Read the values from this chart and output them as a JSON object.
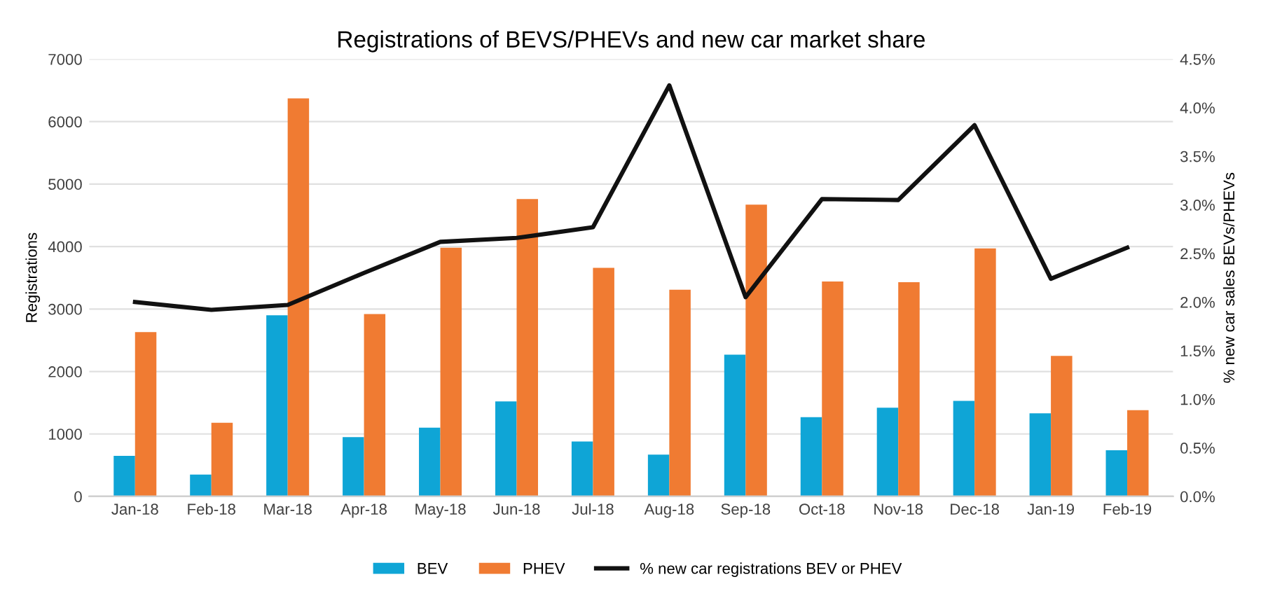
{
  "chart_data": {
    "type": "bar",
    "title": "Registrations of BEVS/PHEVs and new car market share",
    "ylabel": "Registrations",
    "y2label": "% new car sales BEVs/PHEVs",
    "categories": [
      "Jan-18",
      "Feb-18",
      "Mar-18",
      "Apr-18",
      "May-18",
      "Jun-18",
      "Jul-18",
      "Aug-18",
      "Sep-18",
      "Oct-18",
      "Nov-18",
      "Dec-18",
      "Jan-19",
      "Feb-19"
    ],
    "series": [
      {
        "name": "BEV",
        "color": "#0fa5d6",
        "values": [
          650,
          350,
          2900,
          950,
          1100,
          1520,
          880,
          670,
          2270,
          1270,
          1420,
          1530,
          1330,
          740
        ]
      },
      {
        "name": "PHEV",
        "color": "#f07b32",
        "values": [
          2630,
          1180,
          6370,
          2920,
          3980,
          4760,
          3660,
          3310,
          4670,
          3440,
          3430,
          3970,
          2250,
          1380
        ]
      },
      {
        "name": "% new car registrations BEV or PHEV",
        "type": "line",
        "axis": "y2",
        "color": "#111111",
        "values": [
          2.0,
          1.92,
          1.97,
          2.3,
          2.62,
          2.66,
          2.77,
          4.23,
          2.05,
          3.06,
          3.05,
          3.82,
          2.24,
          2.56
        ]
      }
    ],
    "ylim": [
      0,
      7000
    ],
    "yticks": [
      0,
      1000,
      2000,
      3000,
      4000,
      5000,
      6000,
      7000
    ],
    "y2lim": [
      0,
      4.5
    ],
    "y2ticks": [
      {
        "value": 0,
        "label": "0.0%"
      },
      {
        "value": 0.5,
        "label": "0.5%"
      },
      {
        "value": 1,
        "label": "1.0%"
      },
      {
        "value": 1.5,
        "label": "1.5%"
      },
      {
        "value": 2,
        "label": "2.0%"
      },
      {
        "value": 2.5,
        "label": "2.5%"
      },
      {
        "value": 3,
        "label": "3.0%"
      },
      {
        "value": 3.5,
        "label": "3.5%"
      },
      {
        "value": 4,
        "label": "4.0%"
      },
      {
        "value": 4.5,
        "label": "4.5%"
      }
    ],
    "grid": "y",
    "legend": "bottom"
  }
}
